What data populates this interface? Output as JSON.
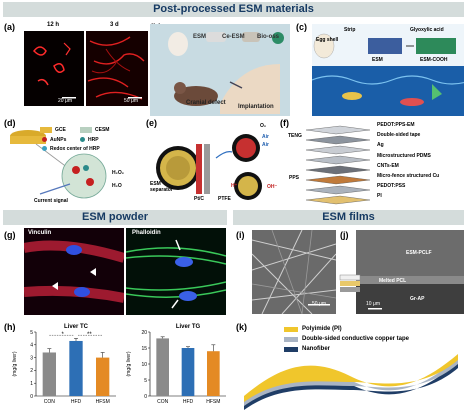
{
  "banners": {
    "top": "Post-processed ESM materials",
    "powder": "ESM powder",
    "films": "ESM films"
  },
  "panels": {
    "a": {
      "label": "(a)",
      "t1": "12 h",
      "t2": "3 d",
      "scale1": "20 μm",
      "scale2": "50 μm"
    },
    "b": {
      "label": "(b)",
      "esm": "ESM",
      "ce": "Ce-ESM",
      "bio": "Bio-oss",
      "cranial": "Cranial defect",
      "impl": "Implantation"
    },
    "c": {
      "label": "(c)",
      "strip": "Strip",
      "egg": "Egg shell",
      "esm": "ESM",
      "gly": "Glyoxylic acid",
      "cooh": "ESM-COOH"
    },
    "d": {
      "label": "(d)",
      "gce": "GCE",
      "cesm": "CESM",
      "au": "AuNPs",
      "hrp": "HRP",
      "redox": "Redox center of HRP",
      "h2o2": "H₂O₂",
      "h2o": "H₂O",
      "current": "Current signal"
    },
    "e": {
      "label": "(e)",
      "o2": "O₂",
      "air1": "Air",
      "air2": "Air",
      "esm_sep": "ESM separator",
      "ptc": "Pt/C",
      "ptfe": "PTFE",
      "oh": "OH⁻",
      "h": "H⁺"
    },
    "f": {
      "label": "(f)",
      "teng": "TENG",
      "pps": "PPS",
      "layers": [
        "PEDOT:PPS-EM",
        "Double-sided tape",
        "Ag",
        "Microstructured PDMS",
        "CNTs-EM",
        "Micro-fence structured Cu",
        "PEDOT:PSS",
        "PI"
      ]
    },
    "g": {
      "label": "(g)",
      "vinculin": "Vinculin",
      "phalloidin": "Phalloidin"
    },
    "h": {
      "label": "(h)",
      "sig1": "*",
      "sig2": "**"
    },
    "i": {
      "label": "(i)",
      "scale": "50 μm"
    },
    "j": {
      "label": "(j)",
      "pclf": "ESM-PCLF",
      "melted": "Melted PCL",
      "grap": "Gr-AP",
      "scale": "10 μm"
    },
    "k": {
      "label": "(k)",
      "legend": [
        "Polyimide (PI)",
        "Double-sided conductive copper tape",
        "Nanofiber"
      ]
    }
  },
  "colors": {
    "banner_bg": "#d4dcdb",
    "banner_text": "#163a63",
    "con": "#8a8a8a",
    "hfd": "#2d6fb5",
    "hfsm": "#e48a24",
    "pi": "#f0c62c",
    "tape": "#a9b4c4",
    "nano": "#1f3d66"
  },
  "chart_data": [
    {
      "type": "bar",
      "title": "Liver TC",
      "ylabel": "(mg/g liver)",
      "categories": [
        "CON",
        "HFD",
        "HFSM"
      ],
      "values": [
        3.4,
        4.3,
        3.0
      ],
      "errors": [
        0.3,
        0.2,
        0.4
      ],
      "ylim": [
        0,
        5
      ],
      "yticks": [
        0,
        1,
        2,
        3,
        4,
        5
      ]
    },
    {
      "type": "bar",
      "title": "Liver TG",
      "ylabel": "(mg/g liver)",
      "categories": [
        "CON",
        "HFD",
        "HFSM"
      ],
      "values": [
        18,
        15,
        14
      ],
      "errors": [
        0.5,
        0.4,
        2
      ],
      "ylim": [
        0,
        20
      ],
      "yticks": [
        0,
        5,
        10,
        15,
        20
      ]
    }
  ]
}
